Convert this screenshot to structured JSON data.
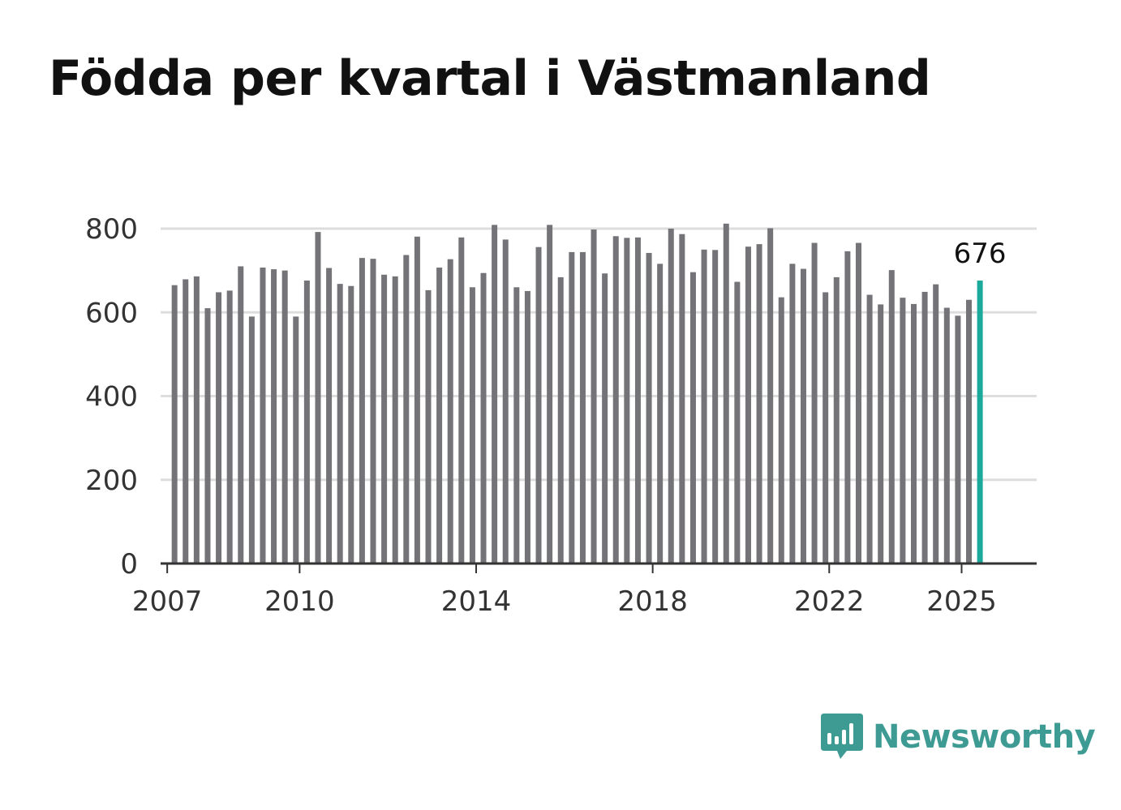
{
  "chart_data": {
    "type": "bar",
    "title": "Födda per kvartal i Västmanland",
    "xlabel": "",
    "ylabel": "",
    "ylim": [
      0,
      800
    ],
    "xlim": [
      2006.85,
      2026.7
    ],
    "yticks": [
      0,
      200,
      400,
      600,
      800
    ],
    "xticks": [
      2007,
      2010,
      2014,
      2018,
      2022,
      2025
    ],
    "grid": true,
    "legend": "none",
    "bar_color": "#737378",
    "highlight_color": "#1aa99b",
    "highlight_label": "676",
    "quarters": [
      "2007 Q1",
      "2007 Q2",
      "2007 Q3",
      "2007 Q4",
      "2008 Q1",
      "2008 Q2",
      "2008 Q3",
      "2008 Q4",
      "2009 Q1",
      "2009 Q2",
      "2009 Q3",
      "2009 Q4",
      "2010 Q1",
      "2010 Q2",
      "2010 Q3",
      "2010 Q4",
      "2011 Q1",
      "2011 Q2",
      "2011 Q3",
      "2011 Q4",
      "2012 Q1",
      "2012 Q2",
      "2012 Q3",
      "2012 Q4",
      "2013 Q1",
      "2013 Q2",
      "2013 Q3",
      "2013 Q4",
      "2014 Q1",
      "2014 Q2",
      "2014 Q3",
      "2014 Q4",
      "2015 Q1",
      "2015 Q2",
      "2015 Q3",
      "2015 Q4",
      "2016 Q1",
      "2016 Q2",
      "2016 Q3",
      "2016 Q4",
      "2017 Q1",
      "2017 Q2",
      "2017 Q3",
      "2017 Q4",
      "2018 Q1",
      "2018 Q2",
      "2018 Q3",
      "2018 Q4",
      "2019 Q1",
      "2019 Q2",
      "2019 Q3",
      "2019 Q4",
      "2020 Q1",
      "2020 Q2",
      "2020 Q3",
      "2020 Q4",
      "2021 Q1",
      "2021 Q2",
      "2021 Q3",
      "2021 Q4",
      "2022 Q1",
      "2022 Q2",
      "2022 Q3",
      "2022 Q4",
      "2023 Q1",
      "2023 Q2",
      "2023 Q3",
      "2023 Q4",
      "2024 Q1",
      "2024 Q2",
      "2024 Q3",
      "2024 Q4",
      "2025 Q1",
      "2025 Q2"
    ],
    "values": [
      665,
      679,
      686,
      610,
      648,
      652,
      710,
      590,
      707,
      703,
      700,
      590,
      676,
      792,
      706,
      668,
      663,
      730,
      728,
      690,
      686,
      737,
      781,
      653,
      707,
      727,
      779,
      660,
      694,
      809,
      774,
      660,
      651,
      756,
      809,
      684,
      744,
      744,
      798,
      693,
      782,
      778,
      779,
      742,
      716,
      800,
      787,
      696,
      750,
      749,
      812,
      673,
      757,
      763,
      801,
      636,
      716,
      704,
      766,
      648,
      684,
      746,
      766,
      642,
      619,
      701,
      635,
      620,
      649,
      667,
      611,
      592,
      630,
      676
    ]
  },
  "brand": {
    "name": "Newsworthy",
    "icon": "bar-chart-speech-bubble-icon",
    "color": "#3e9b94"
  }
}
